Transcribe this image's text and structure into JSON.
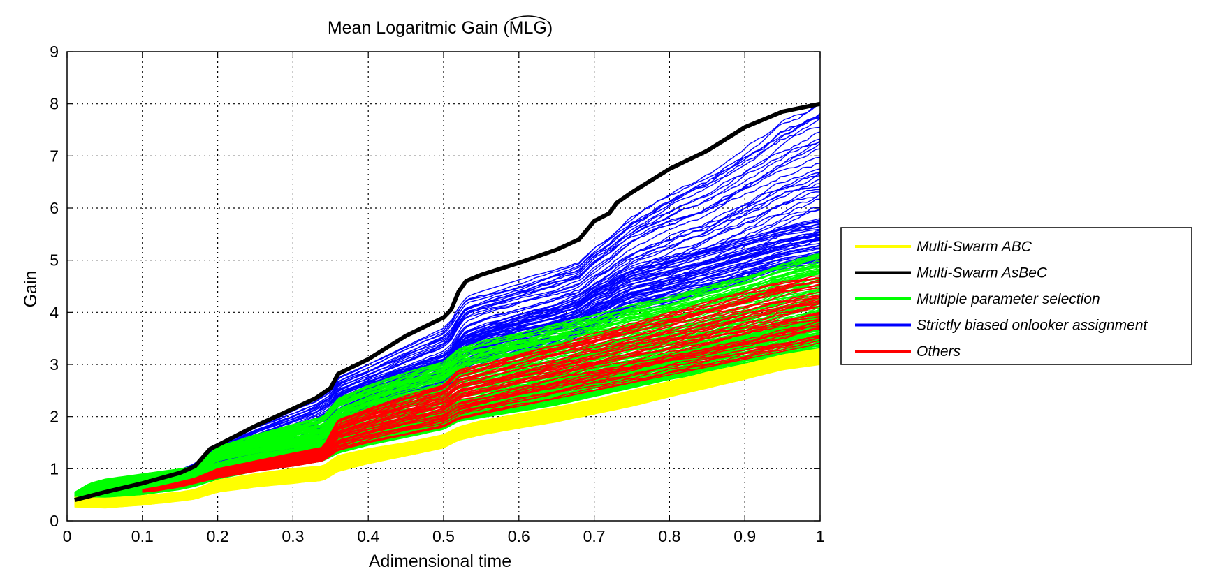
{
  "chart_data": {
    "type": "line",
    "title": "Mean Logaritmic Gain (MLG)",
    "title_prefix": "Mean Logaritmic Gain (",
    "title_hat": "MLG",
    "title_suffix": ")",
    "xlabel": "Adimensional time",
    "ylabel": "Gain",
    "xlim": [
      0,
      1
    ],
    "ylim": [
      0,
      9
    ],
    "xticks": [
      "0",
      "0.1",
      "0.2",
      "0.3",
      "0.4",
      "0.5",
      "0.6",
      "0.7",
      "0.8",
      "0.9",
      "1"
    ],
    "yticks": [
      "0",
      "1",
      "2",
      "3",
      "4",
      "5",
      "6",
      "7",
      "8",
      "9"
    ],
    "grid": true,
    "legend_position": "right, outside plot",
    "series": [
      {
        "name": "Multi-Swarm  ABC",
        "color": "#ffff00",
        "x": [
          0.01,
          0.05,
          0.1,
          0.15,
          0.17,
          0.2,
          0.25,
          0.3,
          0.34,
          0.36,
          0.4,
          0.45,
          0.5,
          0.52,
          0.55,
          0.6,
          0.65,
          0.7,
          0.75,
          0.8,
          0.85,
          0.9,
          0.95,
          1.0
        ],
        "bands": [
          {
            "lo": [
              0.27,
              0.25,
              0.3,
              0.38,
              0.42,
              0.55,
              0.65,
              0.72,
              0.78,
              0.95,
              1.1,
              1.25,
              1.4,
              1.55,
              1.65,
              1.78,
              1.9,
              2.05,
              2.2,
              2.38,
              2.55,
              2.72,
              2.9,
              3.0
            ],
            "hi": [
              0.45,
              0.43,
              0.48,
              0.55,
              0.6,
              0.78,
              0.9,
              1.0,
              1.05,
              1.25,
              1.38,
              1.5,
              1.65,
              1.8,
              1.92,
              2.05,
              2.18,
              2.32,
              2.5,
              2.68,
              2.85,
              3.0,
              3.18,
              3.3
            ]
          }
        ]
      },
      {
        "name": "Multi-Swarm AsBeC",
        "color": "#000000",
        "x": [
          0.01,
          0.05,
          0.1,
          0.15,
          0.17,
          0.19,
          0.2,
          0.25,
          0.3,
          0.33,
          0.35,
          0.36,
          0.4,
          0.45,
          0.5,
          0.51,
          0.52,
          0.53,
          0.55,
          0.6,
          0.65,
          0.68,
          0.7,
          0.72,
          0.73,
          0.75,
          0.8,
          0.85,
          0.9,
          0.95,
          1.0
        ],
        "values": [
          0.4,
          0.55,
          0.72,
          0.92,
          1.05,
          1.38,
          1.45,
          1.82,
          2.15,
          2.35,
          2.55,
          2.82,
          3.1,
          3.55,
          3.9,
          4.05,
          4.4,
          4.6,
          4.72,
          4.95,
          5.2,
          5.4,
          5.75,
          5.9,
          6.1,
          6.3,
          6.75,
          7.1,
          7.55,
          7.85,
          8.0
        ]
      },
      {
        "name": "Multiple parameter selection",
        "color": "#00ff00",
        "x": [
          0.01,
          0.03,
          0.05,
          0.1,
          0.15,
          0.17,
          0.2,
          0.25,
          0.3,
          0.34,
          0.36,
          0.4,
          0.45,
          0.5,
          0.52,
          0.55,
          0.6,
          0.65,
          0.7,
          0.75,
          0.8,
          0.85,
          0.9,
          0.95,
          1.0
        ],
        "bands": [
          {
            "lo": [
              0.38,
              0.5,
              0.55,
              0.7,
              0.82,
              0.92,
              1.15,
              1.3,
              1.4,
              1.48,
              1.62,
              1.75,
              1.9,
              2.05,
              2.2,
              2.3,
              2.42,
              2.55,
              2.7,
              2.85,
              3.0,
              3.15,
              3.3,
              3.5,
              3.65
            ],
            "hi": [
              0.55,
              0.72,
              0.8,
              0.9,
              1.0,
              1.05,
              1.42,
              1.65,
              1.85,
              2.0,
              2.35,
              2.6,
              2.85,
              3.05,
              3.3,
              3.45,
              3.6,
              3.78,
              3.95,
              4.15,
              4.3,
              4.5,
              4.7,
              4.95,
              5.15
            ]
          },
          {
            "lo": [
              0.38,
              0.4,
              0.42,
              0.5,
              0.6,
              0.66,
              0.8,
              0.95,
              1.05,
              1.15,
              1.3,
              1.45,
              1.6,
              1.75,
              1.9,
              1.98,
              2.1,
              2.22,
              2.38,
              2.55,
              2.7,
              2.85,
              3.0,
              3.15,
              3.25
            ],
            "hi": [
              0.5,
              0.55,
              0.62,
              0.75,
              0.88,
              0.94,
              1.12,
              1.28,
              1.38,
              1.48,
              1.65,
              1.8,
              1.95,
              2.1,
              2.3,
              2.4,
              2.55,
              2.7,
              2.88,
              3.05,
              3.2,
              3.4,
              3.6,
              3.8,
              3.95
            ]
          }
        ]
      },
      {
        "name": "Strictly biased onlooker assignment",
        "color": "#0000ff",
        "x": [
          0.01,
          0.05,
          0.1,
          0.15,
          0.17,
          0.19,
          0.2,
          0.25,
          0.3,
          0.33,
          0.35,
          0.36,
          0.4,
          0.45,
          0.5,
          0.51,
          0.52,
          0.53,
          0.55,
          0.6,
          0.65,
          0.68,
          0.7,
          0.72,
          0.73,
          0.75,
          0.8,
          0.85,
          0.9,
          0.95,
          1.0
        ],
        "bands": [
          {
            "lo": [
              0.38,
              0.48,
              0.6,
              0.75,
              0.85,
              1.0,
              1.05,
              1.2,
              1.35,
              1.5,
              1.6,
              1.95,
              2.15,
              2.35,
              2.5,
              2.6,
              2.85,
              3.0,
              3.1,
              3.3,
              3.45,
              3.6,
              3.75,
              3.85,
              3.95,
              4.05,
              4.2,
              4.4,
              4.6,
              4.85,
              5.0
            ],
            "hi": [
              0.45,
              0.6,
              0.78,
              0.98,
              1.1,
              1.35,
              1.45,
              1.82,
              2.12,
              2.3,
              2.5,
              2.75,
              3.0,
              3.35,
              3.7,
              3.85,
              4.1,
              4.3,
              4.4,
              4.62,
              4.85,
              5.0,
              5.3,
              5.5,
              5.65,
              5.9,
              6.35,
              6.7,
              7.2,
              7.7,
              8.1
            ]
          },
          {
            "lo": [
              0.38,
              0.46,
              0.58,
              0.72,
              0.82,
              0.98,
              1.02,
              1.15,
              1.25,
              1.35,
              1.45,
              1.9,
              2.1,
              2.3,
              2.45,
              2.55,
              2.72,
              2.88,
              3.0,
              3.22,
              3.38,
              3.52,
              3.7,
              3.8,
              3.9,
              4.0,
              4.15,
              4.35,
              4.55,
              4.78,
              4.9
            ],
            "hi": [
              0.42,
              0.52,
              0.66,
              0.82,
              0.92,
              1.08,
              1.12,
              1.3,
              1.48,
              1.62,
              1.8,
              2.45,
              2.7,
              2.95,
              3.2,
              3.3,
              3.5,
              3.62,
              3.72,
              3.95,
              4.15,
              4.3,
              4.5,
              4.6,
              4.72,
              4.85,
              5.05,
              5.25,
              5.45,
              5.65,
              5.8
            ]
          }
        ]
      },
      {
        "name": "Others",
        "color": "#ff0000",
        "x": [
          0.1,
          0.12,
          0.15,
          0.17,
          0.2,
          0.25,
          0.3,
          0.34,
          0.36,
          0.4,
          0.45,
          0.5,
          0.52,
          0.55,
          0.6,
          0.65,
          0.7,
          0.75,
          0.8,
          0.85,
          0.9,
          0.95,
          1.0
        ],
        "bands": [
          {
            "lo": [
              0.55,
              0.58,
              0.65,
              0.72,
              0.82,
              0.95,
              1.05,
              1.15,
              1.35,
              1.5,
              1.65,
              1.8,
              1.95,
              2.05,
              2.2,
              2.35,
              2.5,
              2.65,
              2.8,
              2.95,
              3.1,
              3.25,
              3.4
            ],
            "hi": [
              0.6,
              0.65,
              0.75,
              0.82,
              1.0,
              1.15,
              1.3,
              1.42,
              1.95,
              2.15,
              2.4,
              2.6,
              2.9,
              3.0,
              3.2,
              3.4,
              3.6,
              3.8,
              4.0,
              4.2,
              4.4,
              4.6,
              4.75
            ]
          }
        ]
      }
    ]
  }
}
